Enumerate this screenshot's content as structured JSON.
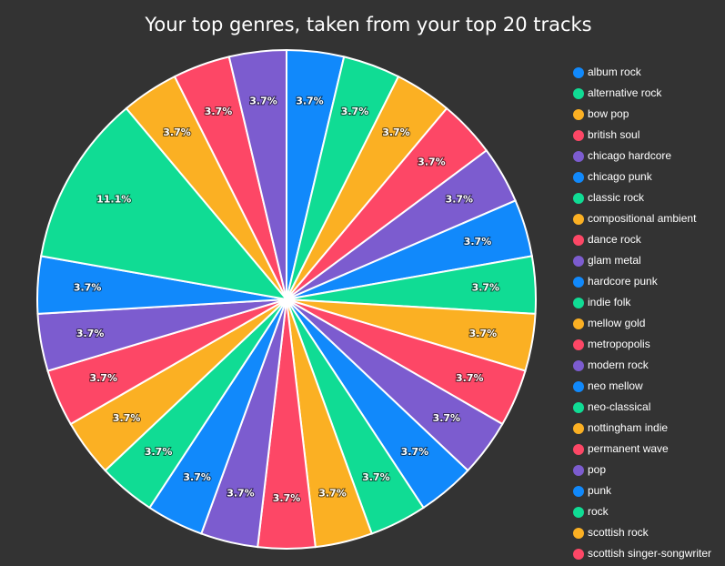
{
  "chart_data": {
    "type": "pie",
    "title": "Your top genres, taken from your top 20 tracks",
    "categories": [
      "album rock",
      "alternative rock",
      "bow pop",
      "british soul",
      "chicago hardcore",
      "chicago punk",
      "classic rock",
      "compositional ambient",
      "dance rock",
      "glam metal",
      "hardcore punk",
      "indie folk",
      "mellow gold",
      "metropopolis",
      "modern rock",
      "neo mellow",
      "neo-classical",
      "nottingham indie",
      "permanent wave",
      "pop",
      "punk",
      "rock",
      "scottish rock",
      "scottish singer-songwriter",
      null
    ],
    "values": [
      3.7,
      3.7,
      3.7,
      3.7,
      3.7,
      3.7,
      3.7,
      3.7,
      3.7,
      3.7,
      3.7,
      3.7,
      3.7,
      3.7,
      3.7,
      3.7,
      3.7,
      3.7,
      3.7,
      3.7,
      3.7,
      11.1,
      3.7,
      3.7,
      3.7
    ],
    "value_labels": [
      "3.7%",
      "3.7%",
      "3.7%",
      "3.7%",
      "3.7%",
      "3.7%",
      "3.7%",
      "3.7%",
      "3.7%",
      "3.7%",
      "3.7%",
      "3.7%",
      "3.7%",
      "3.7%",
      "3.7%",
      "3.7%",
      "3.7%",
      "3.7%",
      "3.7%",
      "3.7%",
      "3.7%",
      "11.1%",
      "3.7%",
      "3.7%",
      "3.7%"
    ],
    "colors": [
      "#1189fb",
      "#10dc94",
      "#fbb023",
      "#fd4766",
      "#7c5ccf"
    ],
    "legend": "right"
  }
}
